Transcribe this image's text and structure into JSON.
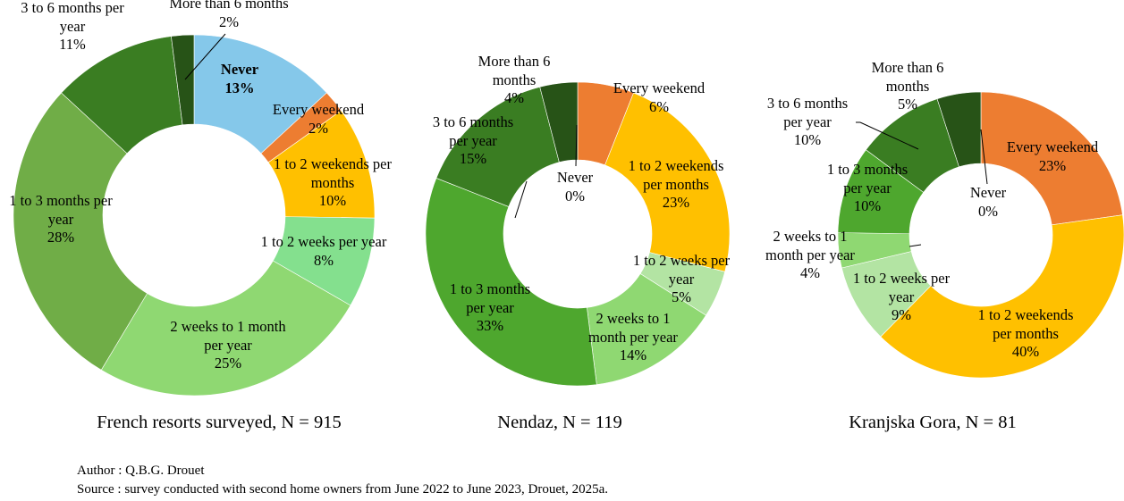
{
  "chart_data": [
    {
      "type": "pie",
      "title": "French resorts surveyed, N = 915",
      "categories": [
        "Never",
        "Every weekend",
        "1 to 2 weekends per months",
        "1 to 2 weeks per year",
        "2 weeks to 1 month per year",
        "1 to 3 months per year",
        "3 to 6 months per year",
        "More than 6 months"
      ],
      "labels": [
        "Never",
        "Every weekend",
        "1 to 2 weekends per\nmonths",
        "1 to 2 weeks per year",
        "2 weeks to 1 month\nper year",
        "1 to 3 months per\nyear",
        "3 to 6 months per\nyear",
        "More than 6 months"
      ],
      "values": [
        13,
        2,
        10,
        8,
        25,
        28,
        11,
        2
      ],
      "pct": [
        "13%",
        "2%",
        "10%",
        "8%",
        "25%",
        "28%",
        "11%",
        "2%"
      ],
      "colors": [
        "#85C8EA",
        "#ED7D31",
        "#FFC000",
        "#84E08E",
        "#8FD872",
        "#70AD47",
        "#3A7D22",
        "#275317"
      ]
    },
    {
      "type": "pie",
      "title": "Nendaz, N = 119",
      "categories": [
        "Never",
        "Every weekend",
        "1 to 2 weekends per months",
        "1 to 2 weeks per year",
        "2 weeks to 1 month per year",
        "1 to 3 months per year",
        "3 to 6 months per year",
        "More than 6 months"
      ],
      "labels": [
        "Never",
        "Every weekend",
        "1 to 2 weekends\nper months",
        "1 to 2 weeks per\nyear",
        "2 weeks to 1\nmonth per year",
        "1 to 3 months\nper year",
        "3 to 6 months\nper year",
        "More than 6\nmonths"
      ],
      "values": [
        0,
        6,
        23,
        5,
        14,
        33,
        15,
        4
      ],
      "pct": [
        "0%",
        "6%",
        "23%",
        "5%",
        "14%",
        "33%",
        "15%",
        "4%"
      ],
      "colors": [
        "#85C8EA",
        "#ED7D31",
        "#FFC000",
        "#B3E4A3",
        "#8FD872",
        "#4EA72E",
        "#3A7D22",
        "#275317"
      ]
    },
    {
      "type": "pie",
      "title": "Kranjska Gora, N = 81",
      "categories": [
        "Never",
        "Every weekend",
        "1 to 2 weekends per months",
        "1 to 2 weeks per year",
        "2 weeks to 1 month per year",
        "1 to 3 months per year",
        "3 to 6 months per year",
        "More than 6 months"
      ],
      "labels": [
        "Never",
        "Every weekend",
        "1 to 2 weekends\nper months",
        "1 to 2 weeks per\nyear",
        "2 weeks to 1\nmonth per year",
        "1 to 3 months\nper year",
        "3 to 6 months\nper year",
        "More than 6\nmonths"
      ],
      "values": [
        0,
        23,
        40,
        9,
        4,
        10,
        10,
        5
      ],
      "pct": [
        "0%",
        "23%",
        "40%",
        "9%",
        "4%",
        "10%",
        "10%",
        "5%"
      ],
      "colors": [
        "#85C8EA",
        "#ED7D31",
        "#FFC000",
        "#B3E4A3",
        "#8FD872",
        "#4EA72E",
        "#3A7D22",
        "#275317"
      ]
    }
  ],
  "footer": {
    "author": "Author : Q.B.G. Drouet",
    "source": "Source : survey conducted with second home owners from June 2022 to June 2023, Drouet, 2025a."
  }
}
